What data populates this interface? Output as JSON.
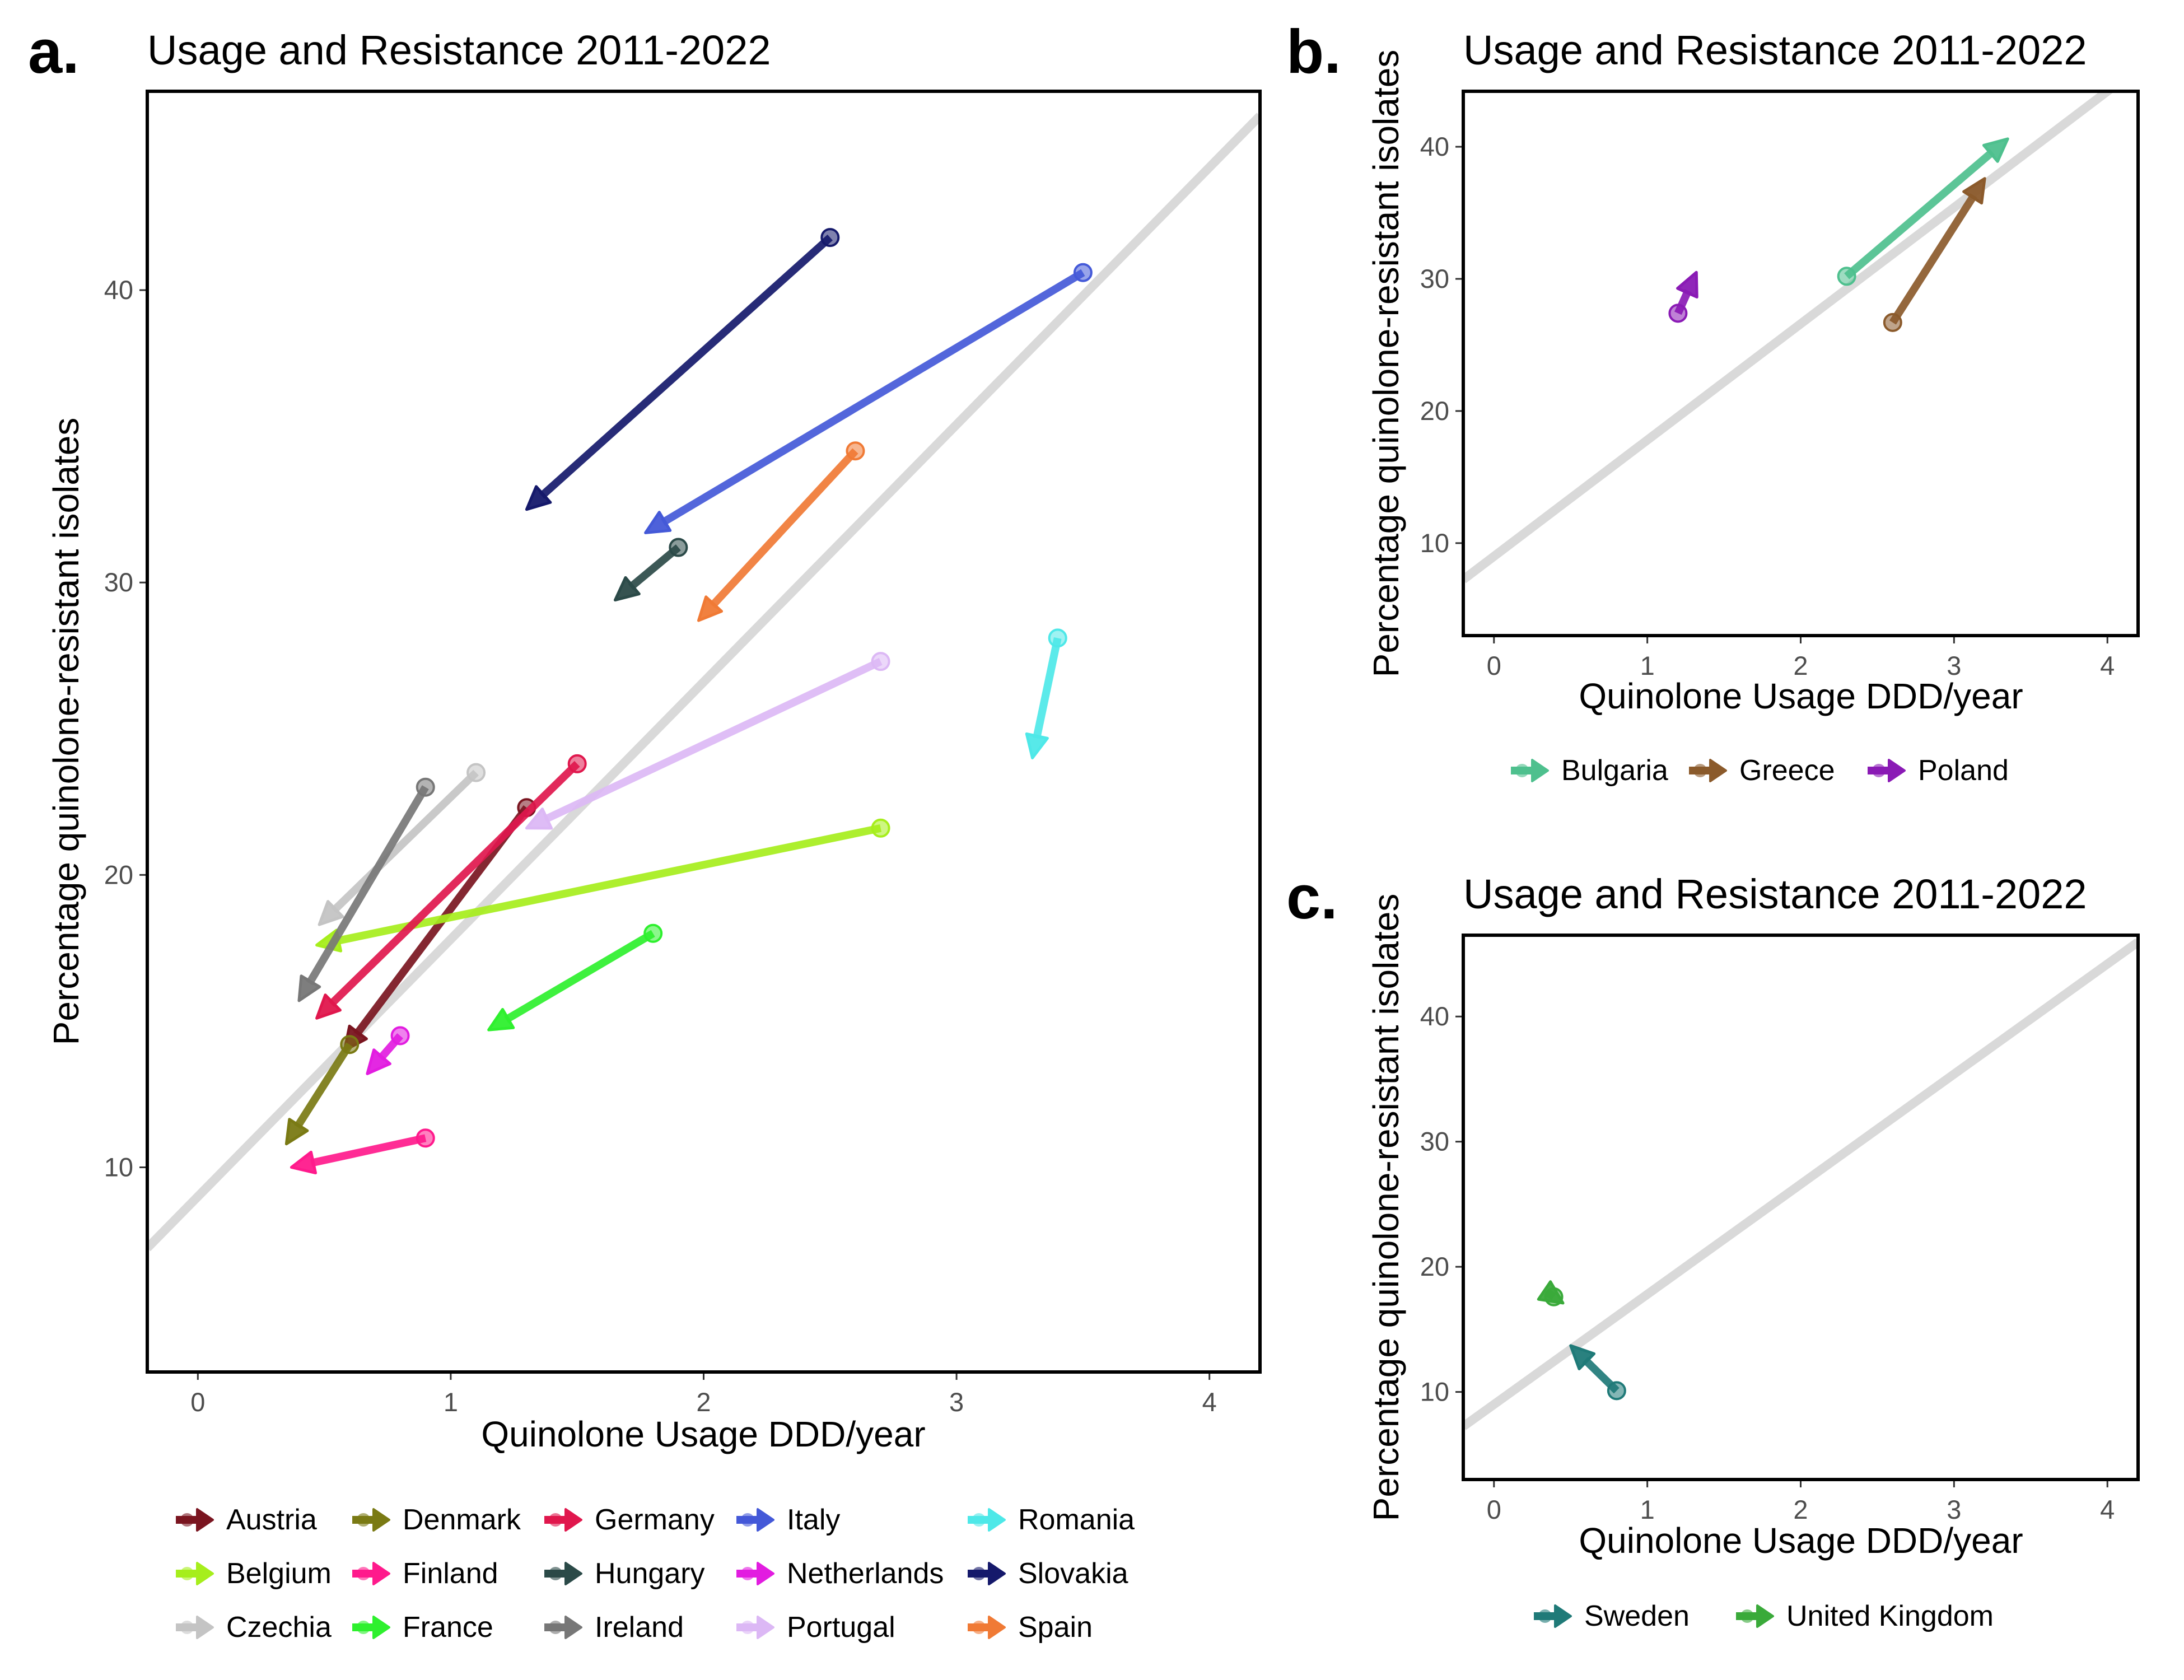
{
  "chart_data": [
    {
      "panel": "a.",
      "type": "scatter",
      "title": "Usage and Resistance 2011-2022",
      "xlabel": "Quinolone Usage DDD/year",
      "ylabel": "Percentage quinolone-resistant isolates",
      "xlim": [
        -0.2,
        4.2
      ],
      "ylim": [
        3,
        46.8
      ],
      "x_ticks": [
        0,
        1,
        2,
        3,
        4
      ],
      "y_ticks": [
        10,
        20,
        30,
        40
      ],
      "grid": false,
      "legend_position": "bottom",
      "reference_line": {
        "intercept": 9.0,
        "slope": 8.8,
        "color": "#d9d9d9"
      },
      "series": [
        {
          "name": "Austria",
          "color": "#7a1520",
          "x_start": 1.3,
          "y_start": 22.3,
          "x_end": 0.58,
          "y_end": 14.0
        },
        {
          "name": "Belgium",
          "color": "#a6ee1c",
          "x_start": 2.7,
          "y_start": 21.6,
          "x_end": 0.47,
          "y_end": 17.6
        },
        {
          "name": "Czechia",
          "color": "#c4c4c4",
          "x_start": 1.1,
          "y_start": 23.5,
          "x_end": 0.48,
          "y_end": 18.3
        },
        {
          "name": "Denmark",
          "color": "#7a7a14",
          "x_start": 0.6,
          "y_start": 14.2,
          "x_end": 0.35,
          "y_end": 10.8
        },
        {
          "name": "Finland",
          "color": "#ff1a8c",
          "x_start": 0.9,
          "y_start": 11.0,
          "x_end": 0.37,
          "y_end": 10.0
        },
        {
          "name": "France",
          "color": "#2ef02e",
          "x_start": 1.8,
          "y_start": 18.0,
          "x_end": 1.15,
          "y_end": 14.7
        },
        {
          "name": "Germany",
          "color": "#e0174d",
          "x_start": 1.5,
          "y_start": 23.8,
          "x_end": 0.47,
          "y_end": 15.1
        },
        {
          "name": "Hungary",
          "color": "#2b4a48",
          "x_start": 1.9,
          "y_start": 31.2,
          "x_end": 1.65,
          "y_end": 29.4
        },
        {
          "name": "Ireland",
          "color": "#777777",
          "x_start": 0.9,
          "y_start": 23.0,
          "x_end": 0.4,
          "y_end": 15.7
        },
        {
          "name": "Italy",
          "color": "#4459d8",
          "x_start": 3.5,
          "y_start": 40.6,
          "x_end": 1.77,
          "y_end": 31.7
        },
        {
          "name": "Netherlands",
          "color": "#e21ce0",
          "x_start": 0.8,
          "y_start": 14.5,
          "x_end": 0.67,
          "y_end": 13.2
        },
        {
          "name": "Portugal",
          "color": "#dcb8f5",
          "x_start": 2.7,
          "y_start": 27.3,
          "x_end": 1.3,
          "y_end": 21.6
        },
        {
          "name": "Romania",
          "color": "#4ee8e8",
          "x_start": 3.4,
          "y_start": 28.1,
          "x_end": 3.3,
          "y_end": 24.0
        },
        {
          "name": "Slovakia",
          "color": "#15196b",
          "x_start": 2.5,
          "y_start": 41.8,
          "x_end": 1.3,
          "y_end": 32.5
        },
        {
          "name": "Spain",
          "color": "#f07a35",
          "x_start": 2.6,
          "y_start": 34.5,
          "x_end": 1.98,
          "y_end": 28.7
        }
      ]
    },
    {
      "panel": "b.",
      "type": "scatter",
      "title": "Usage and Resistance 2011-2022",
      "xlabel": "Quinolone Usage DDD/year",
      "ylabel": "Percentage quinolone-resistant isolates",
      "xlim": [
        -0.2,
        4.2
      ],
      "ylim": [
        3,
        44.2
      ],
      "x_ticks": [
        0,
        1,
        2,
        3,
        4
      ],
      "y_ticks": [
        10,
        20,
        30,
        40
      ],
      "grid": false,
      "legend_position": "bottom",
      "reference_line": {
        "intercept": 9.0,
        "slope": 8.8,
        "color": "#d9d9d9"
      },
      "series": [
        {
          "name": "Bulgaria",
          "color": "#4ec08e",
          "x_start": 2.3,
          "y_start": 30.2,
          "x_end": 3.35,
          "y_end": 40.6
        },
        {
          "name": "Greece",
          "color": "#8b5a2b",
          "x_start": 2.6,
          "y_start": 26.7,
          "x_end": 3.2,
          "y_end": 37.6
        },
        {
          "name": "Poland",
          "color": "#8a1ab5",
          "x_start": 1.2,
          "y_start": 27.4,
          "x_end": 1.32,
          "y_end": 30.5
        }
      ]
    },
    {
      "panel": "c.",
      "type": "scatter",
      "title": "Usage and Resistance 2011-2022",
      "xlabel": "Quinolone Usage DDD/year",
      "ylabel": "Percentage quinolone-resistant isolates",
      "xlim": [
        -0.2,
        4.2
      ],
      "ylim": [
        3,
        46.5
      ],
      "x_ticks": [
        0,
        1,
        2,
        3,
        4
      ],
      "y_ticks": [
        10,
        20,
        30,
        40
      ],
      "grid": false,
      "legend_position": "bottom",
      "reference_line": {
        "intercept": 9.0,
        "slope": 8.8,
        "color": "#d9d9d9"
      },
      "series": [
        {
          "name": "Sweden",
          "color": "#1f7a78",
          "x_start": 0.8,
          "y_start": 10.1,
          "x_end": 0.5,
          "y_end": 13.7
        },
        {
          "name": "United Kingdom",
          "color": "#3aaa3a",
          "x_start": 0.39,
          "y_start": 17.6,
          "x_end": 0.45,
          "y_end": 17.1
        }
      ]
    }
  ]
}
